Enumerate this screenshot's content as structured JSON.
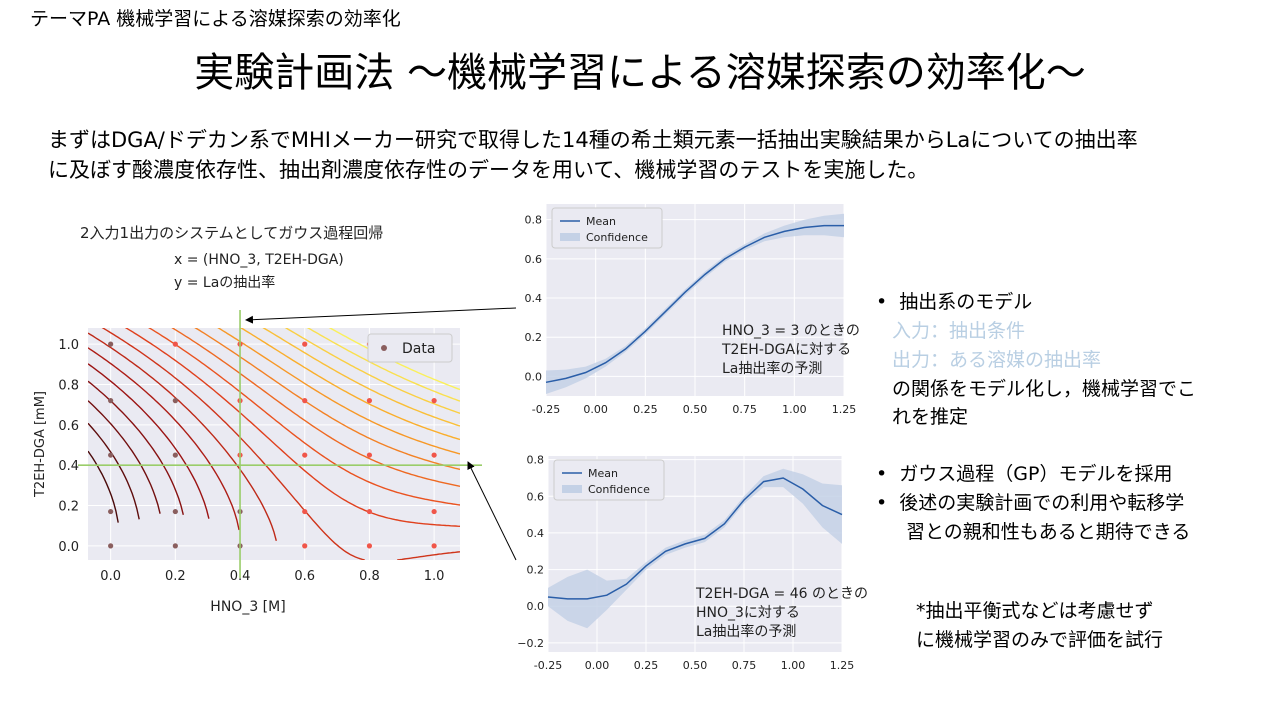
{
  "header": {
    "theme": "テーマPA 機械学習による溶媒探索の効率化"
  },
  "title": "実験計画法 ～機械学習による溶媒探索の効率化～",
  "intro": [
    "まずはDGA/ドデカン系でMHIメーカー研究で取得した14種の希土類元素一括抽出実験結果からLaについての抽出率",
    "に及ぼす酸濃度依存性、抽出剤濃度依存性のデータを用いて、機械学習のテストを実施した。"
  ],
  "left_panel": {
    "heading": "2入力1出力のシステムとしてガウス過程回帰",
    "x_def": "x = (HNO_3, T2EH-DGA)",
    "y_def": "y = Laの抽出率"
  },
  "bullets": {
    "b1": "抽出系のモデル",
    "input_line": "入力：抽出条件",
    "output_line": "出力：ある溶媒の抽出率",
    "desc1": "の関係をモデル化し，機械学習でこ",
    "desc2": "れを推定",
    "b2": "ガウス過程（GP）モデルを採用",
    "b3a": "後述の実験計画での利用や転移学",
    "b3b": "習との親和性もあると期待できる",
    "note1": "*抽出平衡式などは考慮せず",
    "note2": "に機械学習のみで評価を試行"
  },
  "colors": {
    "mean": "#2a5ea8",
    "band": "#c4d1e6",
    "plot_bg": "#eaeaf2",
    "guide": "#9acd6a"
  },
  "chart_data": [
    {
      "type": "contour",
      "xlabel": "HNO_3 [M]",
      "ylabel": "T2EH-DGA [mM]",
      "xlim": [
        -0.07,
        1.08
      ],
      "ylim": [
        -0.07,
        1.08
      ],
      "xticks": [
        0.0,
        0.2,
        0.4,
        0.6,
        0.8,
        1.0
      ],
      "yticks": [
        0.0,
        0.2,
        0.4,
        0.6,
        0.8,
        1.0
      ],
      "tick_labels_x": [
        "0.0",
        "0.2",
        "0.4",
        "0.6",
        "0.8",
        "1.0"
      ],
      "tick_labels_y": [
        "0.0",
        "0.2",
        "0.4",
        "0.6",
        "0.8",
        "1.0"
      ],
      "legend": "Data",
      "legend_position": "top-right",
      "colormap": "dark-red-to-yellow",
      "guides": {
        "x": 0.4,
        "y": 0.4
      },
      "data_points": [
        [
          0.0,
          0.0
        ],
        [
          0.0,
          0.17
        ],
        [
          0.0,
          0.45
        ],
        [
          0.0,
          0.72
        ],
        [
          0.0,
          1.0
        ],
        [
          0.2,
          0.0
        ],
        [
          0.2,
          0.17
        ],
        [
          0.2,
          0.45
        ],
        [
          0.2,
          0.72
        ],
        [
          0.2,
          1.0
        ],
        [
          0.4,
          0.0
        ],
        [
          0.4,
          0.17
        ],
        [
          0.4,
          0.45
        ],
        [
          0.4,
          0.72
        ],
        [
          0.4,
          1.0
        ],
        [
          0.6,
          0.0
        ],
        [
          0.6,
          0.17
        ],
        [
          0.6,
          0.45
        ],
        [
          0.6,
          0.72
        ],
        [
          0.6,
          1.0
        ],
        [
          0.8,
          0.0
        ],
        [
          0.8,
          0.17
        ],
        [
          0.8,
          0.45
        ],
        [
          0.8,
          0.72
        ],
        [
          0.8,
          1.0
        ],
        [
          1.0,
          0.0
        ],
        [
          1.0,
          0.17
        ],
        [
          1.0,
          0.45
        ],
        [
          1.0,
          0.72
        ],
        [
          1.0,
          1.0
        ]
      ]
    },
    {
      "type": "line",
      "xlim": [
        -0.25,
        1.25
      ],
      "ylim": [
        -0.1,
        0.88
      ],
      "xticks": [
        -0.25,
        0.0,
        0.25,
        0.5,
        0.75,
        1.0,
        1.25
      ],
      "tick_labels_x": [
        "-0.25",
        "0.00",
        "0.25",
        "0.50",
        "0.75",
        "1.00",
        "1.25"
      ],
      "yticks": [
        0.0,
        0.2,
        0.4,
        0.6,
        0.8
      ],
      "tick_labels_y": [
        "0.0",
        "0.2",
        "0.4",
        "0.6",
        "0.8"
      ],
      "legend": [
        "Mean",
        "Confidence"
      ],
      "legend_position": "top-left",
      "annotation": [
        "HNO_3 = 3 のときの",
        "T2EH-DGAに対する",
        "La抽出率の予測"
      ],
      "series": [
        {
          "name": "Mean",
          "x": [
            -0.25,
            -0.15,
            -0.05,
            0.05,
            0.15,
            0.25,
            0.35,
            0.45,
            0.55,
            0.65,
            0.75,
            0.85,
            0.95,
            1.05,
            1.15,
            1.25
          ],
          "y": [
            -0.03,
            -0.01,
            0.02,
            0.07,
            0.14,
            0.23,
            0.33,
            0.43,
            0.52,
            0.6,
            0.66,
            0.71,
            0.74,
            0.76,
            0.77,
            0.77
          ],
          "band": [
            0.06,
            0.045,
            0.03,
            0.02,
            0.015,
            0.015,
            0.015,
            0.015,
            0.015,
            0.015,
            0.015,
            0.02,
            0.03,
            0.04,
            0.05,
            0.06
          ]
        }
      ]
    },
    {
      "type": "line",
      "xlim": [
        -0.25,
        1.25
      ],
      "ylim": [
        -0.25,
        0.82
      ],
      "xticks": [
        -0.25,
        0.0,
        0.25,
        0.5,
        0.75,
        1.0,
        1.25
      ],
      "tick_labels_x": [
        "-0.25",
        "0.00",
        "0.25",
        "0.50",
        "0.75",
        "1.00",
        "1.25"
      ],
      "yticks": [
        -0.2,
        0.0,
        0.2,
        0.4,
        0.6,
        0.8
      ],
      "tick_labels_y": [
        "−0.2",
        "0.0",
        "0.2",
        "0.4",
        "0.6",
        "0.8"
      ],
      "legend": [
        "Mean",
        "Confidence"
      ],
      "legend_position": "top-left",
      "annotation": [
        "T2EH-DGA = 46 のときの",
        "HNO_3に対する",
        "La抽出率の予測"
      ],
      "series": [
        {
          "name": "Mean",
          "x": [
            -0.25,
            -0.15,
            -0.05,
            0.05,
            0.15,
            0.25,
            0.35,
            0.45,
            0.55,
            0.65,
            0.75,
            0.85,
            0.95,
            1.05,
            1.15,
            1.25
          ],
          "y": [
            0.05,
            0.04,
            0.04,
            0.06,
            0.12,
            0.22,
            0.3,
            0.34,
            0.37,
            0.45,
            0.58,
            0.68,
            0.7,
            0.64,
            0.55,
            0.5
          ],
          "band": [
            0.05,
            0.12,
            0.16,
            0.08,
            0.03,
            0.02,
            0.02,
            0.02,
            0.02,
            0.02,
            0.02,
            0.03,
            0.05,
            0.08,
            0.12,
            0.16
          ]
        }
      ]
    }
  ]
}
